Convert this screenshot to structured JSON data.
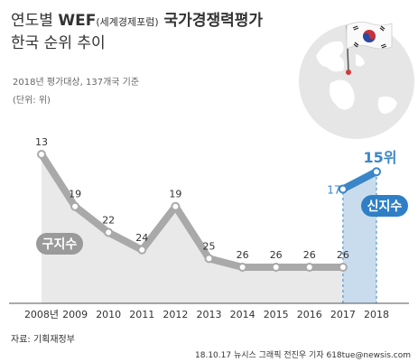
{
  "title": {
    "part1": "연도별 ",
    "part2": "WEF",
    "part3": "(세계경제포럼)",
    "part4": " 국가경쟁력평가",
    "line2": "한국 순위 추이"
  },
  "subtitle": "2018년 평가대상, 137개국 기준",
  "unit": "(단위: 위)",
  "footer": {
    "source": "자료: 기획재정부",
    "credit": "18.10.17 뉴시스 그래픽 전진우 기자 618tue@newsis.com"
  },
  "colors": {
    "old_series": "#a9a9a9",
    "new_series": "#3a86c8",
    "new_area": "#c9dcee",
    "old_area": "#e9e9e9",
    "badge_old": "#9a9a9a",
    "badge_new": "#2f7fc6"
  },
  "chart_data": {
    "type": "line",
    "categories": [
      "2008년",
      "2009",
      "2010",
      "2011",
      "2012",
      "2013",
      "2014",
      "2015",
      "2016",
      "2017",
      "2018"
    ],
    "series": [
      {
        "name": "구지수",
        "x": [
          "2008년",
          "2009",
          "2010",
          "2011",
          "2012",
          "2013",
          "2014",
          "2015",
          "2016",
          "2017"
        ],
        "values": [
          13,
          19,
          22,
          24,
          19,
          25,
          26,
          26,
          26,
          26
        ]
      },
      {
        "name": "신지수",
        "x": [
          "2017",
          "2018"
        ],
        "values": [
          17,
          15
        ]
      }
    ],
    "data_labels": {
      "old": [
        "13",
        "19",
        "22",
        "24",
        "19",
        "25",
        "26",
        "26",
        "26",
        "26"
      ],
      "new": [
        "17",
        "15위"
      ]
    },
    "yaxis": "inverted rank",
    "ylim": [
      13,
      26
    ]
  }
}
